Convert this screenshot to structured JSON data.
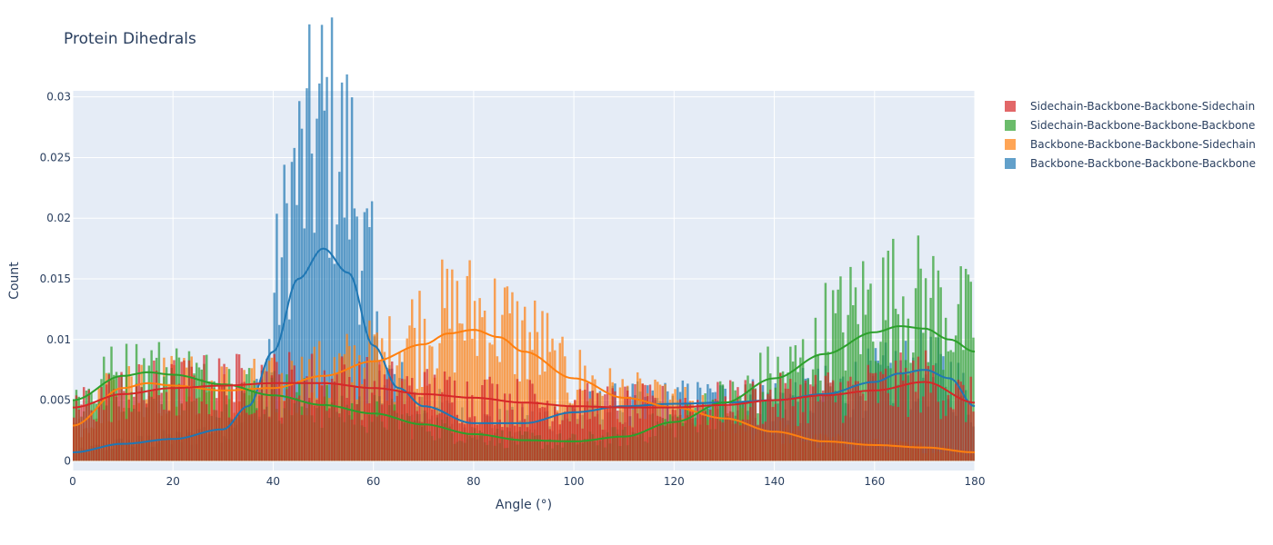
{
  "title": "Protein Dihedrals",
  "chart_data": {
    "type": "bar",
    "title": "Protein Dihedrals",
    "xlabel": "Angle (°)",
    "ylabel": "Count",
    "xlim": [
      0,
      180
    ],
    "ylim": [
      -0.0008,
      0.0305
    ],
    "xticks": [
      0,
      20,
      40,
      60,
      80,
      100,
      120,
      140,
      160,
      180
    ],
    "yticks": [
      0,
      0.005,
      0.01,
      0.015,
      0.02,
      0.025,
      0.03
    ],
    "ytick_labels": [
      "0",
      "0.005",
      "0.01",
      "0.015",
      "0.02",
      "0.025",
      "0.03"
    ],
    "bin_width": 0.5,
    "grid": true,
    "legend_position": "right",
    "series": [
      {
        "name": "Sidechain-Backbone-Backbone-Sidechain",
        "color": "#d62728",
        "profile_x": [
          0,
          10,
          20,
          30,
          40,
          50,
          60,
          70,
          80,
          90,
          100,
          110,
          120,
          130,
          140,
          150,
          160,
          170,
          180
        ],
        "profile_y": [
          0.0044,
          0.0055,
          0.006,
          0.0062,
          0.0064,
          0.0064,
          0.006,
          0.0055,
          0.0052,
          0.0048,
          0.0045,
          0.0044,
          0.0044,
          0.0046,
          0.005,
          0.0054,
          0.0058,
          0.0065,
          0.0048
        ]
      },
      {
        "name": "Sidechain-Backbone-Backbone-Backbone",
        "color": "#2ca02c",
        "profile_x": [
          0,
          10,
          15,
          20,
          30,
          40,
          50,
          60,
          70,
          80,
          90,
          100,
          110,
          120,
          130,
          140,
          150,
          160,
          165,
          170,
          175,
          180
        ],
        "profile_y": [
          0.005,
          0.007,
          0.0073,
          0.0071,
          0.0063,
          0.0054,
          0.0046,
          0.0039,
          0.003,
          0.0022,
          0.0017,
          0.0016,
          0.002,
          0.0032,
          0.0048,
          0.0068,
          0.0088,
          0.0106,
          0.0111,
          0.0109,
          0.01,
          0.009
        ]
      },
      {
        "name": "Backbone-Backbone-Backbone-Sidechain",
        "color": "#ff7f0e",
        "profile_x": [
          0,
          10,
          15,
          20,
          30,
          40,
          50,
          60,
          70,
          75,
          80,
          85,
          90,
          100,
          110,
          120,
          130,
          140,
          150,
          160,
          170,
          180
        ],
        "profile_y": [
          0.0029,
          0.006,
          0.0064,
          0.0062,
          0.0058,
          0.006,
          0.007,
          0.0082,
          0.0096,
          0.0105,
          0.0108,
          0.0102,
          0.009,
          0.0068,
          0.0052,
          0.0044,
          0.0035,
          0.0024,
          0.0016,
          0.0013,
          0.0011,
          0.0007
        ]
      },
      {
        "name": "Backbone-Backbone-Backbone-Backbone",
        "color": "#1f77b4",
        "profile_x": [
          0,
          10,
          20,
          30,
          35,
          40,
          45,
          50,
          55,
          60,
          65,
          70,
          80,
          90,
          100,
          110,
          120,
          130,
          140,
          150,
          160,
          165,
          170,
          175,
          180
        ],
        "profile_y": [
          0.0007,
          0.0014,
          0.0018,
          0.0026,
          0.0045,
          0.009,
          0.015,
          0.0175,
          0.0155,
          0.0095,
          0.006,
          0.0045,
          0.0031,
          0.0031,
          0.004,
          0.0045,
          0.0047,
          0.0048,
          0.005,
          0.0055,
          0.0065,
          0.0072,
          0.0075,
          0.0068,
          0.0045
        ]
      }
    ]
  }
}
